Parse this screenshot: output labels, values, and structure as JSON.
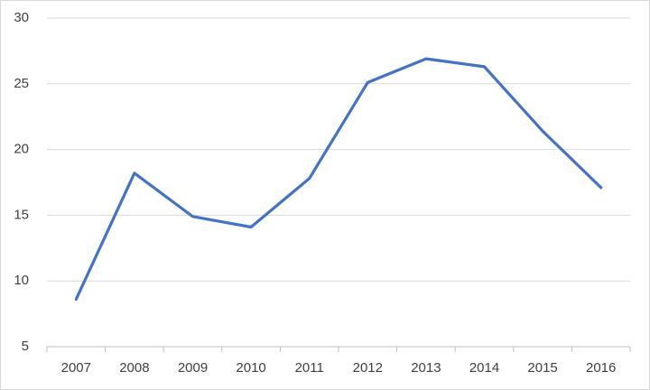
{
  "chart_data": {
    "type": "line",
    "categories": [
      "2007",
      "2008",
      "2009",
      "2010",
      "2011",
      "2012",
      "2013",
      "2014",
      "2015",
      "2016"
    ],
    "values": [
      8.6,
      18.2,
      14.9,
      14.1,
      17.8,
      25.1,
      26.9,
      26.3,
      21.4,
      17.1
    ],
    "color": "#4472c4",
    "ylim": [
      5,
      30
    ],
    "yticks": [
      5,
      10,
      15,
      20,
      25,
      30
    ],
    "grid": true
  }
}
